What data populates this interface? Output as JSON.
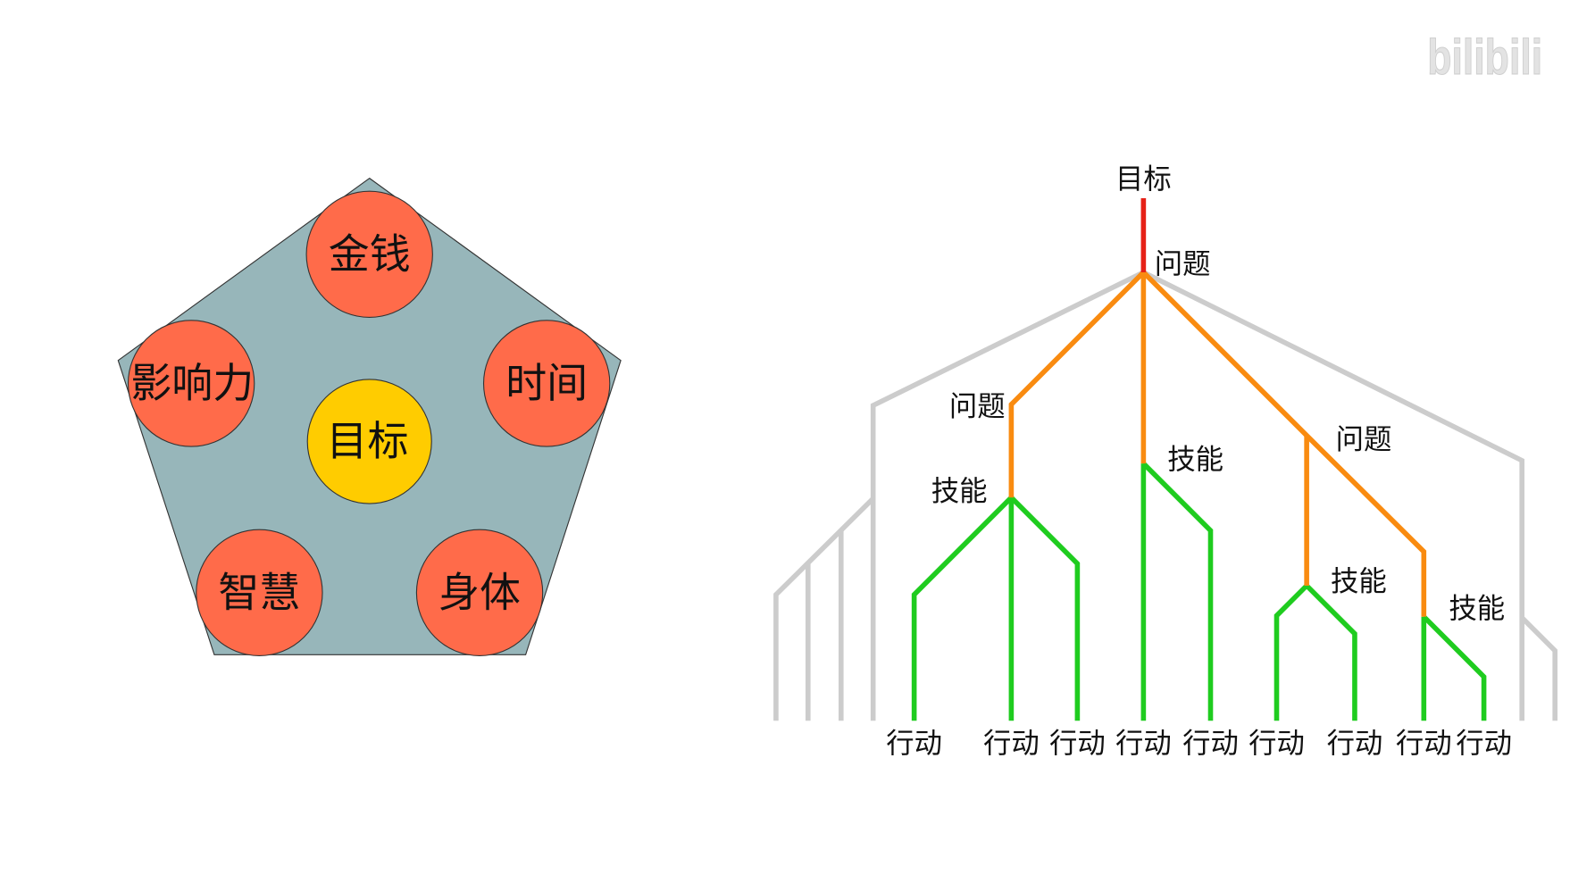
{
  "watermark": {
    "text": "bilibili",
    "color": "#e3e3e3"
  },
  "pentagon_diagram": {
    "colors": {
      "pentagon": "#97b6ba",
      "outer_circle": "#ff6b4a",
      "center_circle": "#ffcc00",
      "outline": "#333333"
    },
    "center": {
      "label": "目标"
    },
    "nodes": [
      {
        "label": "金钱"
      },
      {
        "label": "时间"
      },
      {
        "label": "身体"
      },
      {
        "label": "智慧"
      },
      {
        "label": "影响力"
      }
    ]
  },
  "tree_diagram": {
    "colors": {
      "goal_line": "#e62117",
      "problem_line": "#f98b10",
      "skill_line": "#1fcc1f",
      "background_line": "#cccccc"
    },
    "root": {
      "label": "目标"
    },
    "problems": [
      {
        "label": "问题"
      },
      {
        "label": "问题"
      },
      {
        "label": "问题"
      }
    ],
    "skills": [
      {
        "label": "技能"
      },
      {
        "label": "技能"
      },
      {
        "label": "技能"
      },
      {
        "label": "技能"
      }
    ],
    "actions": [
      {
        "label": "行动"
      },
      {
        "label": "行动"
      },
      {
        "label": "行动"
      },
      {
        "label": "行动"
      },
      {
        "label": "行动"
      },
      {
        "label": "行动"
      },
      {
        "label": "行动"
      },
      {
        "label": "行动"
      },
      {
        "label": "行动"
      }
    ]
  }
}
